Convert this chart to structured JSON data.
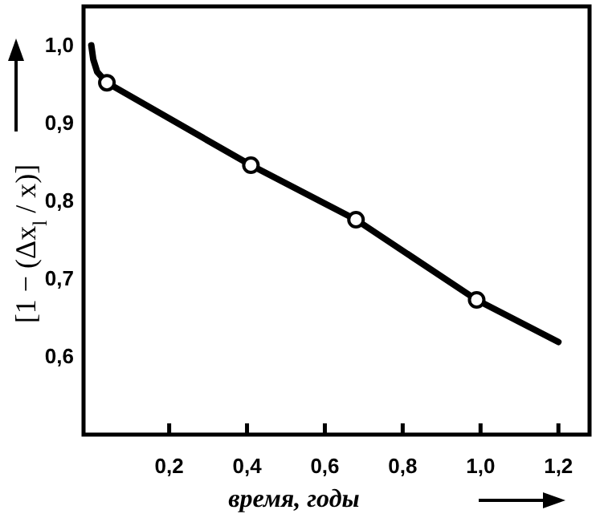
{
  "chart_data": {
    "type": "line",
    "xlabel": "время, годы",
    "ylabel": "[1 − (Δx$_{l}$ / x)]",
    "xlim": [
      -0.02,
      1.28
    ],
    "ylim": [
      0.5,
      1.05
    ],
    "xticks": [
      {
        "value": 0.2,
        "label": "0,2"
      },
      {
        "value": 0.4,
        "label": "0,4"
      },
      {
        "value": 0.6,
        "label": "0,6"
      },
      {
        "value": 0.8,
        "label": "0,8"
      },
      {
        "value": 1.0,
        "label": "1,0"
      },
      {
        "value": 1.2,
        "label": "1,2"
      }
    ],
    "yticks": [
      {
        "value": 0.6,
        "label": "0,6"
      },
      {
        "value": 0.7,
        "label": "0,7"
      },
      {
        "value": 0.8,
        "label": "0,8"
      },
      {
        "value": 0.9,
        "label": "0,9"
      },
      {
        "value": 1.0,
        "label": "1,0"
      }
    ],
    "grid": false,
    "series": [
      {
        "color": "#000000",
        "x": [
          0,
          0.005,
          0.015,
          0.04,
          0.41,
          0.68,
          0.99,
          1.2
        ],
        "values": [
          1.0,
          0.982,
          0.966,
          0.952,
          0.846,
          0.776,
          0.673,
          0.619
        ],
        "marker": "none",
        "line_style": "solid"
      },
      {
        "type": "scatter",
        "color": "#000000",
        "x": [
          0.04,
          0.41,
          0.68,
          0.99
        ],
        "values": [
          0.952,
          0.846,
          0.776,
          0.673
        ],
        "marker": "circle"
      }
    ]
  }
}
